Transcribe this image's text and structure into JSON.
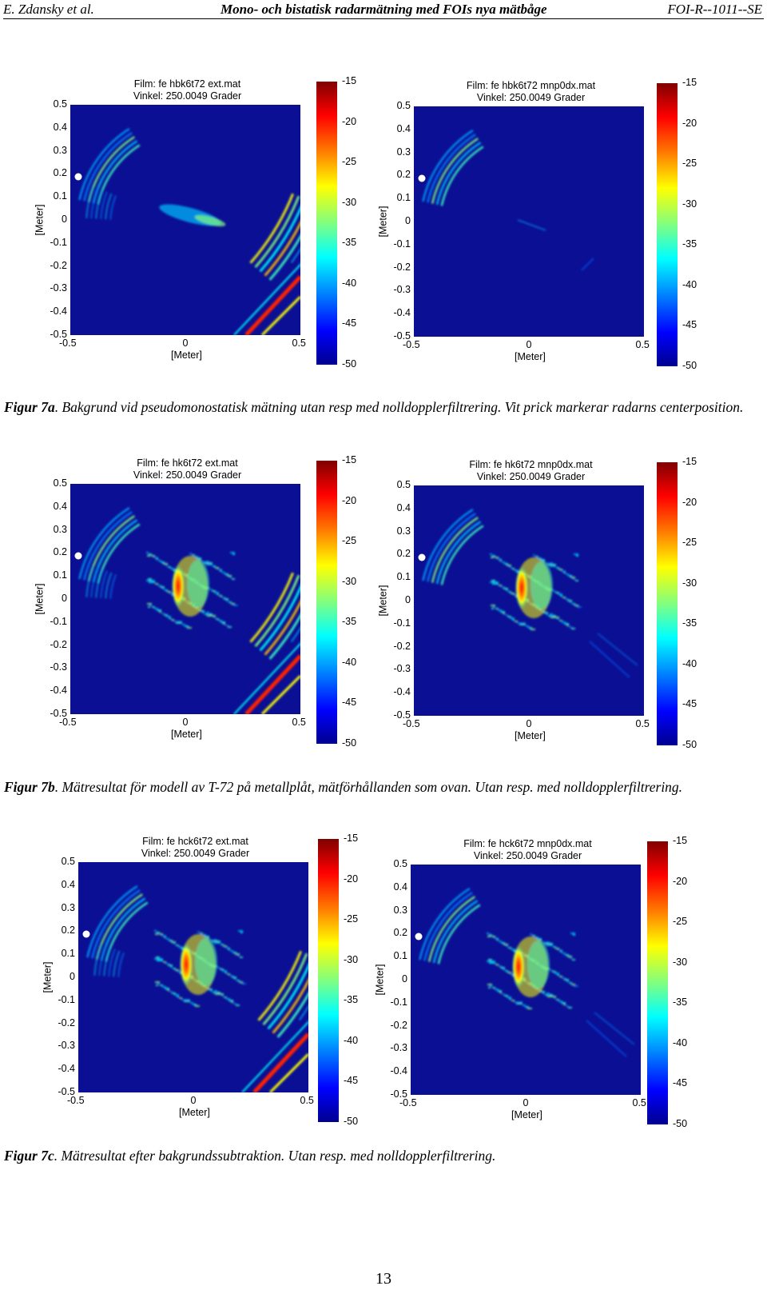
{
  "header": {
    "left": "E. Zdansky et al.",
    "center": "Mono- och bistatisk radarmätning med FOIs nya mätbåge",
    "right": "FOI-R--1011--SE"
  },
  "captions": [
    {
      "label": "Figur 7a",
      "text": ". Bakgrund vid pseudomonostatisk mätning utan resp med nolldopplerfiltrering. Vit prick markerar radarns centerposition."
    },
    {
      "label": "Figur 7b",
      "text": ". Mätresultat för modell av T-72 på metallplåt, mätförhållanden som ovan. Utan resp. med nolldopplerfiltrering."
    },
    {
      "label": "Figur 7c",
      "text": ". Mätresultat efter bakgrundssubtraktion. Utan resp. med nolldopplerfiltrering."
    }
  ],
  "figures": [
    {
      "title1": "Film: fe hbk6t72 ext.mat",
      "title2": "Vinkel: 250.0049 Grader"
    },
    {
      "title1": "Film: fe hbk6t72 mnp0dx.mat",
      "title2": "Vinkel: 250.0049 Grader"
    },
    {
      "title1": "Film: fe hk6t72 ext.mat",
      "title2": "Vinkel: 250.0049 Grader"
    },
    {
      "title1": "Film: fe hk6t72 mnp0dx.mat",
      "title2": "Vinkel: 250.0049 Grader"
    },
    {
      "title1": "Film: fe hck6t72 ext.mat",
      "title2": "Vinkel: 250.0049 Grader"
    },
    {
      "title1": "Film: fe hck6t72 mnp0dx.mat",
      "title2": "Vinkel: 250.0049 Grader"
    }
  ],
  "axes": {
    "xlabel": "[Meter]",
    "ylabel": "[Meter]",
    "yticks": [
      "0.5",
      "0.4",
      "0.3",
      "0.2",
      "0.1",
      "0",
      "-0.1",
      "-0.2",
      "-0.3",
      "-0.4",
      "-0.5"
    ],
    "xticks": [
      "-0.5",
      "0",
      "0.5"
    ]
  },
  "colorbar": {
    "ticks": [
      "-15",
      "-20",
      "-25",
      "-30",
      "-35",
      "-40",
      "-45",
      "-50"
    ]
  },
  "page_number": "13"
}
